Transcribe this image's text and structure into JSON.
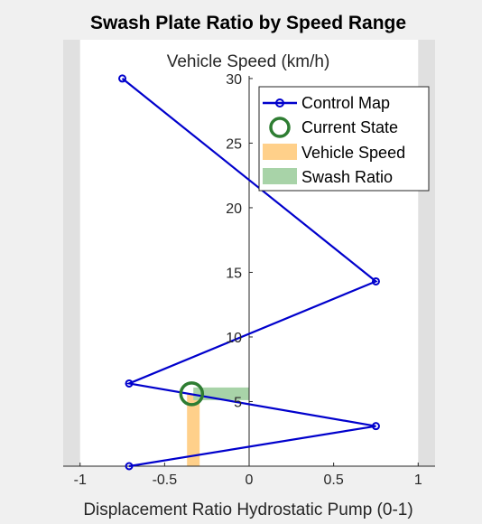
{
  "chart_data": {
    "type": "line",
    "title": "Swash Plate Ratio by Speed Range",
    "xlabel": "Displacement Ratio Hydrostatic Pump (0-1)",
    "ylabel": "Vehicle Speed (km/h)",
    "xlim": [
      -1.1,
      1.1
    ],
    "ylim": [
      0,
      33
    ],
    "xticks": [
      -1,
      -0.5,
      0,
      0.5,
      1
    ],
    "xtick_labels": [
      "-1",
      "-0.5",
      "0",
      "0.5",
      "1"
    ],
    "yticks": [
      5,
      10,
      15,
      20,
      25,
      30
    ],
    "ytick_labels": [
      "5",
      "10",
      "15",
      "20",
      "25",
      "30"
    ],
    "shaded_x_limits": [
      -1,
      1
    ],
    "series": [
      {
        "name": "Control Map",
        "color": "#0000cc",
        "x": [
          -0.71,
          0.75,
          -0.71,
          0.75,
          -0.75
        ],
        "y": [
          0,
          3.1,
          6.4,
          14.3,
          30
        ]
      }
    ],
    "current_state": {
      "name": "Current State",
      "x": -0.34,
      "y": 5.6,
      "color": "#2e7d32"
    },
    "vehicle_speed_bar": {
      "name": "Vehicle Speed",
      "x": -0.33,
      "y_from": 0,
      "y_to": 5.6,
      "color": "#ffd08a"
    },
    "swash_ratio_bar": {
      "name": "Swash Ratio",
      "x_from": -0.33,
      "x_to": 0,
      "y": 5.6,
      "color": "#a8d3a8"
    },
    "legend": {
      "placement": "top-right",
      "entries": [
        "Control Map",
        "Current State",
        "Vehicle Speed",
        "Swash Ratio"
      ]
    }
  }
}
